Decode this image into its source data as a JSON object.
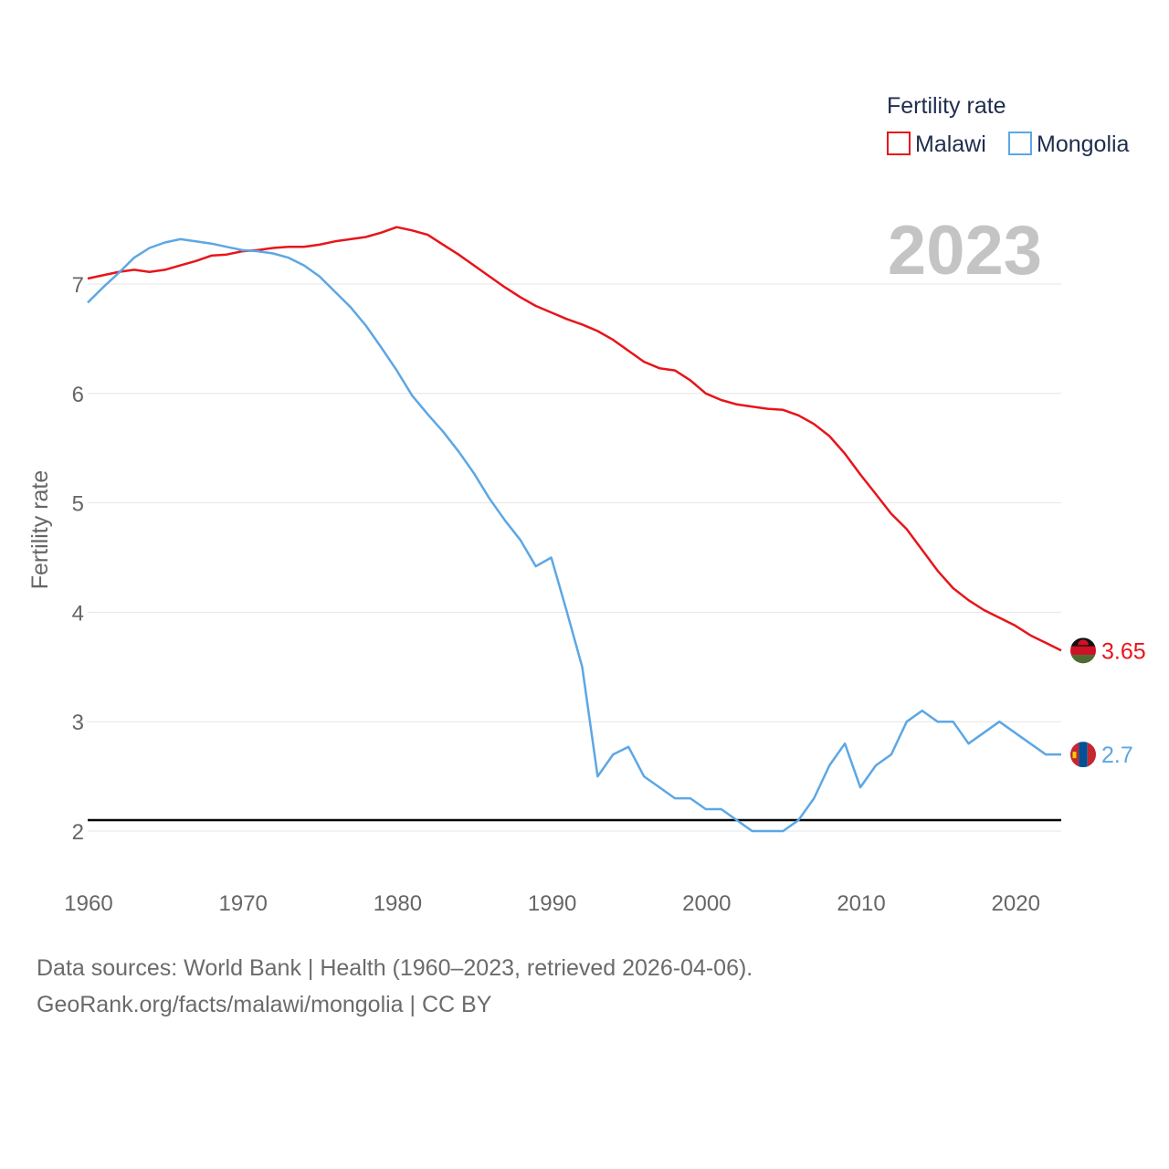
{
  "chart_data": {
    "type": "line",
    "title": "Fertility rate",
    "ylabel": "Fertility rate",
    "xlabel": "",
    "year_display": "2023",
    "xlim": [
      1960,
      2023
    ],
    "ylim": [
      1.6,
      7.8
    ],
    "x_ticks": [
      1960,
      1970,
      1980,
      1990,
      2000,
      2010,
      2020
    ],
    "y_ticks": [
      2,
      3,
      4,
      5,
      6,
      7
    ],
    "reference_line": {
      "value": 2.1
    },
    "legend": {
      "title": "Fertility rate",
      "placement": "top-right"
    },
    "x": [
      1960,
      1961,
      1962,
      1963,
      1964,
      1965,
      1966,
      1967,
      1968,
      1969,
      1970,
      1971,
      1972,
      1973,
      1974,
      1975,
      1976,
      1977,
      1978,
      1979,
      1980,
      1981,
      1982,
      1983,
      1984,
      1985,
      1986,
      1987,
      1988,
      1989,
      1990,
      1991,
      1992,
      1993,
      1994,
      1995,
      1996,
      1997,
      1998,
      1999,
      2000,
      2001,
      2002,
      2003,
      2004,
      2005,
      2006,
      2007,
      2008,
      2009,
      2010,
      2011,
      2012,
      2013,
      2014,
      2015,
      2016,
      2017,
      2018,
      2019,
      2020,
      2021,
      2022,
      2023
    ],
    "series": [
      {
        "name": "Malawi",
        "color": "#e8141a",
        "end_label": "3.65",
        "flag": "malawi-flag",
        "values": [
          7.05,
          7.08,
          7.11,
          7.13,
          7.11,
          7.13,
          7.17,
          7.21,
          7.26,
          7.27,
          7.3,
          7.31,
          7.33,
          7.34,
          7.34,
          7.36,
          7.39,
          7.41,
          7.43,
          7.47,
          7.52,
          7.49,
          7.45,
          7.36,
          7.27,
          7.17,
          7.07,
          6.97,
          6.88,
          6.8,
          6.74,
          6.68,
          6.63,
          6.57,
          6.49,
          6.39,
          6.29,
          6.23,
          6.21,
          6.12,
          6.0,
          5.94,
          5.9,
          5.88,
          5.86,
          5.85,
          5.8,
          5.72,
          5.61,
          5.45,
          5.26,
          5.08,
          4.9,
          4.76,
          4.57,
          4.38,
          4.22,
          4.11,
          4.02,
          3.95,
          3.88,
          3.79,
          3.72,
          3.65
        ]
      },
      {
        "name": "Mongolia",
        "color": "#5ca7e5",
        "end_label": "2.7",
        "flag": "mongolia-flag",
        "values": [
          6.83,
          6.97,
          7.1,
          7.24,
          7.33,
          7.38,
          7.41,
          7.39,
          7.37,
          7.34,
          7.31,
          7.3,
          7.28,
          7.24,
          7.17,
          7.07,
          6.93,
          6.79,
          6.62,
          6.42,
          6.21,
          5.98,
          5.81,
          5.65,
          5.47,
          5.27,
          5.04,
          4.84,
          4.66,
          4.42,
          4.5,
          4.01,
          3.5,
          2.5,
          2.7,
          2.77,
          2.5,
          2.4,
          2.3,
          2.3,
          2.2,
          2.2,
          2.1,
          2.0,
          2.0,
          2.0,
          2.1,
          2.3,
          2.6,
          2.8,
          2.4,
          2.6,
          2.7,
          3.0,
          3.1,
          3.0,
          3.0,
          2.8,
          2.9,
          3.0,
          2.9,
          2.8,
          2.7,
          2.7
        ]
      }
    ]
  },
  "source": {
    "line1": "Data sources: World Bank | Health (1960–2023, retrieved 2026-04-06).",
    "line2": "GeoRank.org/facts/malawi/mongolia | CC BY"
  }
}
